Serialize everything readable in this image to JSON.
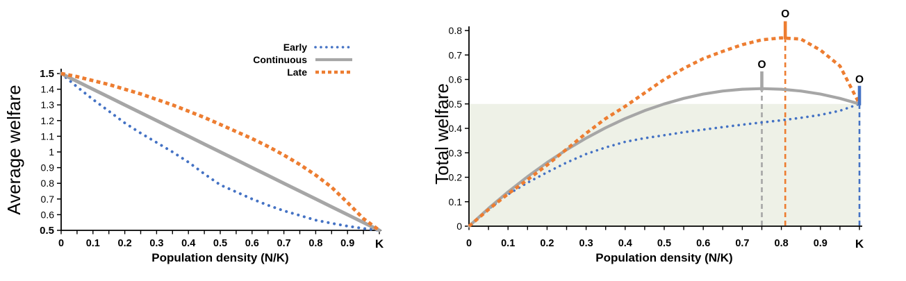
{
  "figure": {
    "kind": "two-panel line figure",
    "background": "#FFFFFF",
    "text_color": "#000000"
  },
  "chart_data": [
    {
      "name": "chart-average-welfare",
      "type": "line",
      "title": "",
      "y_axis_label": "Average welfare",
      "x_axis_label": "Population density (N/K)",
      "xlim": [
        0,
        1
      ],
      "ylim": [
        0.5,
        1.5
      ],
      "x_tick_labels": [
        "0",
        "0.1",
        "0.2",
        "0.3",
        "0.4",
        "0.5",
        "0.6",
        "0.7",
        "0.8",
        "0.9",
        "K"
      ],
      "y_tick_labels": [
        "0.5",
        "0.6",
        "0.7",
        "0.8",
        "0.9",
        "1",
        "1.1",
        "1.2",
        "1.3",
        "1.4",
        "1.5"
      ],
      "y_bold_tick_labels": [
        "0.5",
        "1.5"
      ],
      "grid": false,
      "legend": {
        "position": "top-right"
      },
      "x": [
        0,
        0.05,
        0.1,
        0.15,
        0.2,
        0.25,
        0.3,
        0.35,
        0.4,
        0.45,
        0.5,
        0.55,
        0.6,
        0.65,
        0.7,
        0.75,
        0.8,
        0.85,
        0.9,
        0.95,
        1
      ],
      "series": [
        {
          "name": "Early",
          "color": "#4472C4",
          "style": "dotted",
          "values": [
            1.5,
            1.415,
            1.335,
            1.26,
            1.185,
            1.12,
            1.06,
            1.0,
            0.935,
            0.86,
            0.79,
            0.745,
            0.7,
            0.66,
            0.625,
            0.595,
            0.565,
            0.545,
            0.527,
            0.512,
            0.5
          ]
        },
        {
          "name": "Continuous",
          "color": "#A6A6A6",
          "style": "solid",
          "values": [
            1.5,
            1.45,
            1.4,
            1.35,
            1.3,
            1.25,
            1.2,
            1.15,
            1.1,
            1.05,
            1.0,
            0.95,
            0.9,
            0.85,
            0.8,
            0.75,
            0.7,
            0.65,
            0.6,
            0.55,
            0.5
          ]
        },
        {
          "name": "Late",
          "color": "#ED7D31",
          "style": "dashed",
          "values": [
            1.5,
            1.48,
            1.455,
            1.43,
            1.4,
            1.37,
            1.335,
            1.3,
            1.26,
            1.22,
            1.175,
            1.13,
            1.085,
            1.035,
            0.98,
            0.92,
            0.852,
            0.775,
            0.677,
            0.575,
            0.5
          ]
        }
      ]
    },
    {
      "name": "chart-total-welfare",
      "type": "line",
      "title": "",
      "y_axis_label": "Total welfare",
      "x_axis_label": "Population density (N/K)",
      "xlim": [
        0,
        1
      ],
      "ylim": [
        0,
        0.8
      ],
      "x_tick_labels": [
        "0",
        "0.1",
        "0.2",
        "0.3",
        "0.4",
        "0.5",
        "0.6",
        "0.7",
        "0.8",
        "0.9",
        "K"
      ],
      "y_tick_labels": [
        "0",
        "0.1",
        "0.2",
        "0.3",
        "0.4",
        "0.5",
        "0.6",
        "0.7",
        "0.8"
      ],
      "y_bold_tick_labels": [],
      "grid": false,
      "shaded_region": {
        "y_from": 0,
        "y_to": 0.5,
        "color": "#EEF1E7"
      },
      "x": [
        0,
        0.05,
        0.1,
        0.15,
        0.2,
        0.25,
        0.3,
        0.35,
        0.4,
        0.45,
        0.5,
        0.55,
        0.6,
        0.65,
        0.7,
        0.75,
        0.8,
        0.85,
        0.9,
        0.95,
        1
      ],
      "series": [
        {
          "name": "Early",
          "color": "#4472C4",
          "style": "dotted",
          "values": [
            0,
            0.07,
            0.13,
            0.178,
            0.22,
            0.26,
            0.295,
            0.322,
            0.345,
            0.36,
            0.372,
            0.384,
            0.395,
            0.405,
            0.415,
            0.424,
            0.433,
            0.443,
            0.455,
            0.472,
            0.5
          ]
        },
        {
          "name": "Continuous",
          "color": "#A6A6A6",
          "style": "solid",
          "values": [
            0,
            0.0725,
            0.14,
            0.2025,
            0.26,
            0.3125,
            0.36,
            0.4025,
            0.44,
            0.4725,
            0.5,
            0.5225,
            0.54,
            0.5525,
            0.56,
            0.5625,
            0.56,
            0.5525,
            0.54,
            0.5225,
            0.5
          ]
        },
        {
          "name": "Late",
          "color": "#ED7D31",
          "style": "dashed",
          "values": [
            0,
            0.068,
            0.132,
            0.19,
            0.25,
            0.315,
            0.38,
            0.44,
            0.49,
            0.545,
            0.6,
            0.645,
            0.685,
            0.715,
            0.742,
            0.762,
            0.77,
            0.765,
            0.72,
            0.655,
            0.5
          ]
        }
      ],
      "markers": [
        {
          "name": "continuous-optimum",
          "label": "O",
          "x": 0.75,
          "color": "#A6A6A6",
          "segment": [
            0.554,
            0.633
          ],
          "label_y": 0.662
        },
        {
          "name": "late-optimum",
          "label": "O",
          "x": 0.81,
          "color": "#ED7D31",
          "segment": [
            0.764,
            0.838
          ],
          "label_y": 0.869
        },
        {
          "name": "early-optimum",
          "label": "O",
          "x": 1.0,
          "color": "#4472C4",
          "segment": [
            0.494,
            0.574
          ],
          "label_y": 0.602
        }
      ]
    }
  ]
}
